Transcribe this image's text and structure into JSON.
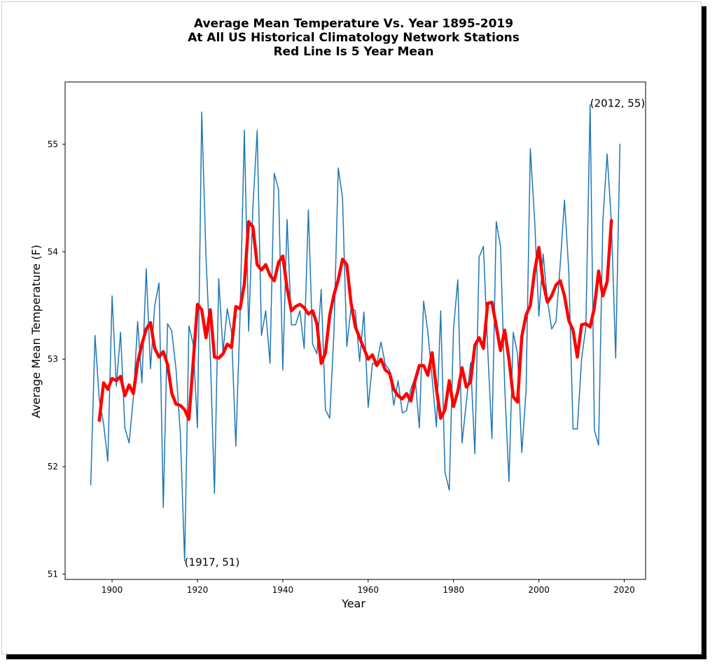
{
  "chart_data": {
    "type": "line",
    "title_lines": [
      "Average Mean Temperature Vs. Year 1895-2019",
      "At All US Historical Climatology Network Stations",
      "Red Line Is 5 Year Mean"
    ],
    "xlabel": "Year",
    "ylabel": "Average Mean Temperature (F)",
    "xlim": [
      1889,
      2025
    ],
    "ylim": [
      50.95,
      55.58
    ],
    "xticks": [
      1900,
      1920,
      1940,
      1960,
      1980,
      2000,
      2020
    ],
    "yticks": [
      51,
      52,
      53,
      54,
      55
    ],
    "grid": false,
    "series": [
      {
        "color": "#1f77b4",
        "x": [
          1895,
          1896,
          1897,
          1898,
          1899,
          1900,
          1901,
          1902,
          1903,
          1904,
          1905,
          1906,
          1907,
          1908,
          1909,
          1910,
          1911,
          1912,
          1913,
          1914,
          1915,
          1916,
          1917,
          1918,
          1919,
          1920,
          1921,
          1922,
          1923,
          1924,
          1925,
          1926,
          1927,
          1928,
          1929,
          1930,
          1931,
          1932,
          1933,
          1934,
          1935,
          1936,
          1937,
          1938,
          1939,
          1940,
          1941,
          1942,
          1943,
          1944,
          1945,
          1946,
          1947,
          1948,
          1949,
          1950,
          1951,
          1952,
          1953,
          1954,
          1955,
          1956,
          1957,
          1958,
          1959,
          1960,
          1961,
          1962,
          1963,
          1964,
          1965,
          1966,
          1967,
          1968,
          1969,
          1970,
          1971,
          1972,
          1973,
          1974,
          1975,
          1976,
          1977,
          1978,
          1979,
          1980,
          1981,
          1982,
          1983,
          1984,
          1985,
          1986,
          1987,
          1988,
          1989,
          1990,
          1991,
          1992,
          1993,
          1994,
          1995,
          1996,
          1997,
          1998,
          1999,
          2000,
          2001,
          2002,
          2003,
          2004,
          2005,
          2006,
          2007,
          2008,
          2009,
          2010,
          2011,
          2012,
          2013,
          2014,
          2015,
          2016,
          2017,
          2018,
          2019
        ],
        "y": [
          51.83,
          53.22,
          52.62,
          52.4,
          52.05,
          53.59,
          52.75,
          53.25,
          52.36,
          52.22,
          52.65,
          53.35,
          52.78,
          53.84,
          52.91,
          53.5,
          53.71,
          51.62,
          53.33,
          53.26,
          52.9,
          52.3,
          51.12,
          53.31,
          53.14,
          52.36,
          55.3,
          53.95,
          53.05,
          51.75,
          53.75,
          53.07,
          53.47,
          53.25,
          52.19,
          53.42,
          55.13,
          53.26,
          54.41,
          55.13,
          53.22,
          53.45,
          52.96,
          54.73,
          54.58,
          52.9,
          54.3,
          53.32,
          53.32,
          53.45,
          53.1,
          54.39,
          53.14,
          53.05,
          53.65,
          52.53,
          52.45,
          53.26,
          54.78,
          54.5,
          53.12,
          53.48,
          53.45,
          52.98,
          53.44,
          52.55,
          52.96,
          52.95,
          53.16,
          52.95,
          52.9,
          52.57,
          52.8,
          52.5,
          52.52,
          52.72,
          52.83,
          52.36,
          53.54,
          53.25,
          52.82,
          52.37,
          53.45,
          51.95,
          51.78,
          53.28,
          53.74,
          52.22,
          52.6,
          52.97,
          52.12,
          53.95,
          54.05,
          53.1,
          52.26,
          54.28,
          54.05,
          52.75,
          51.86,
          53.25,
          53.05,
          52.13,
          52.7,
          54.96,
          54.3,
          53.4,
          53.98,
          53.55,
          53.28,
          53.35,
          53.88,
          54.48,
          53.82,
          52.35,
          52.35,
          53.0,
          53.3,
          55.37,
          52.34,
          52.2,
          54.29,
          54.91,
          54.27,
          53.01,
          55.0
        ]
      },
      {
        "color": "#ff0000",
        "x": [
          1897,
          1898,
          1899,
          1900,
          1901,
          1902,
          1903,
          1904,
          1905,
          1906,
          1907,
          1908,
          1909,
          1910,
          1911,
          1912,
          1913,
          1914,
          1915,
          1916,
          1917,
          1918,
          1919,
          1920,
          1921,
          1922,
          1923,
          1924,
          1925,
          1926,
          1927,
          1928,
          1929,
          1930,
          1931,
          1932,
          1933,
          1934,
          1935,
          1936,
          1937,
          1938,
          1939,
          1940,
          1941,
          1942,
          1943,
          1944,
          1945,
          1946,
          1947,
          1948,
          1949,
          1950,
          1951,
          1952,
          1953,
          1954,
          1955,
          1956,
          1957,
          1958,
          1959,
          1960,
          1961,
          1962,
          1963,
          1964,
          1965,
          1966,
          1967,
          1968,
          1969,
          1970,
          1971,
          1972,
          1973,
          1974,
          1975,
          1976,
          1977,
          1978,
          1979,
          1980,
          1981,
          1982,
          1983,
          1984,
          1985,
          1986,
          1987,
          1988,
          1989,
          1990,
          1991,
          1992,
          1993,
          1994,
          1995,
          1996,
          1997,
          1998,
          1999,
          2000,
          2001,
          2002,
          2003,
          2004,
          2005,
          2006,
          2007,
          2008,
          2009,
          2010,
          2011,
          2012,
          2013,
          2014,
          2015,
          2016,
          2017
        ],
        "y": [
          52.43,
          52.78,
          52.72,
          52.82,
          52.8,
          52.84,
          52.66,
          52.76,
          52.68,
          52.97,
          53.14,
          53.28,
          53.34,
          53.1,
          53.02,
          53.07,
          52.95,
          52.68,
          52.58,
          52.57,
          52.53,
          52.44,
          52.97,
          53.51,
          53.46,
          53.2,
          53.46,
          53.02,
          53.01,
          53.05,
          53.14,
          53.11,
          53.49,
          53.47,
          53.7,
          54.28,
          54.23,
          53.88,
          53.83,
          53.88,
          53.78,
          53.73,
          53.9,
          53.96,
          53.66,
          53.45,
          53.49,
          53.51,
          53.48,
          53.42,
          53.45,
          53.33,
          52.96,
          53.06,
          53.41,
          53.6,
          53.74,
          53.93,
          53.88,
          53.52,
          53.3,
          53.2,
          53.1,
          53.0,
          53.04,
          52.94,
          53.0,
          52.9,
          52.87,
          52.72,
          52.66,
          52.63,
          52.68,
          52.61,
          52.8,
          52.94,
          52.94,
          52.85,
          53.06,
          52.72,
          52.45,
          52.53,
          52.8,
          52.56,
          52.7,
          52.92,
          52.74,
          52.79,
          53.13,
          53.2,
          53.1,
          53.52,
          53.53,
          53.31,
          53.08,
          53.27,
          53.0,
          52.65,
          52.6,
          53.21,
          53.41,
          53.5,
          53.82,
          54.04,
          53.71,
          53.53,
          53.59,
          53.69,
          53.73,
          53.59,
          53.36,
          53.27,
          53.02,
          53.32,
          53.33,
          53.3,
          53.48,
          53.82,
          53.59,
          53.72,
          54.29
        ]
      }
    ],
    "annotations": [
      {
        "text": "(2012, 55)",
        "x": 2012,
        "y": 55.38
      },
      {
        "text": "(1917, 51)",
        "x": 1917,
        "y": 51.11
      }
    ]
  }
}
